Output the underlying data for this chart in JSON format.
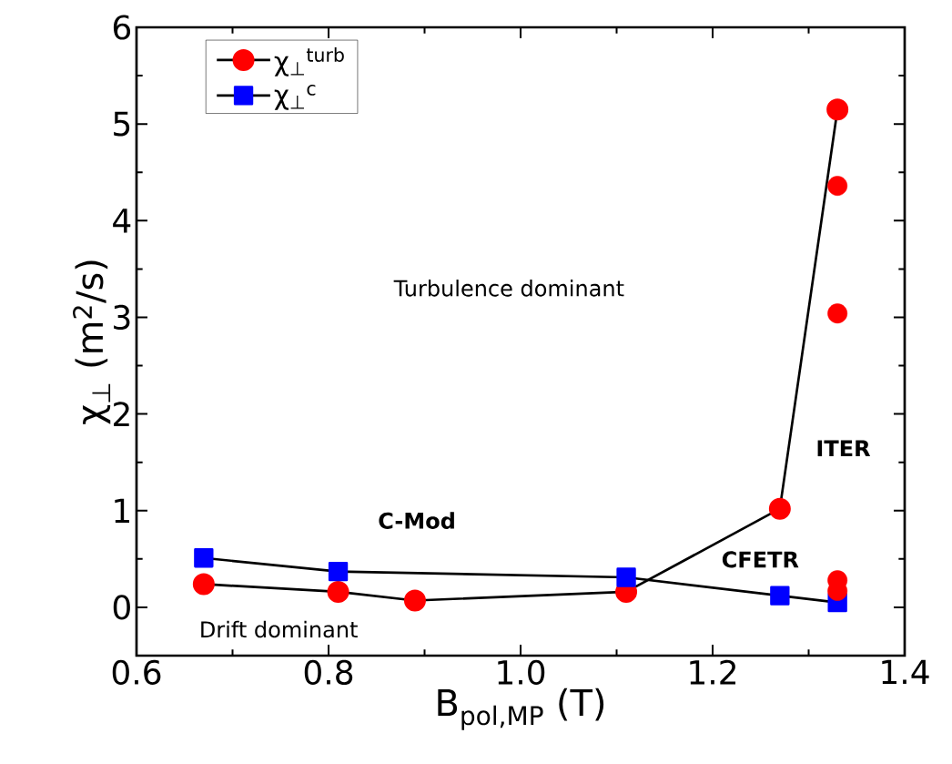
{
  "chart_data": {
    "type": "line",
    "xlabel": "B$_{pol,MP}$ (T)",
    "ylabel": "χ$_{⊥}$ (m$^{2}$/s)",
    "xlim": [
      0.6,
      1.4
    ],
    "xticks": [
      {
        "value": 0.6,
        "label": "0.6"
      },
      {
        "value": 0.8,
        "label": "0.8"
      },
      {
        "value": 1.0,
        "label": "1.0"
      },
      {
        "value": 1.2,
        "label": "1.2"
      },
      {
        "value": 1.4,
        "label": "1.4"
      }
    ],
    "ylim": [
      -0.5,
      6
    ],
    "yticks": [
      0,
      1,
      2,
      3,
      4,
      5,
      6
    ],
    "grid": false,
    "legend": "top left",
    "series": [
      {
        "name": "χ$_{⊥}$$^{turb}$",
        "color": "#ff0000",
        "marker": "circle",
        "x": [
          0.67,
          0.81,
          0.89,
          1.11,
          1.27,
          1.33
        ],
        "values": [
          0.24,
          0.16,
          0.07,
          0.16,
          1.02,
          5.15
        ]
      },
      {
        "name": "χ$_{⊥}$$^{c}$",
        "color": "#0000ff",
        "marker": "square",
        "x": [
          0.67,
          0.81,
          1.11,
          1.27,
          1.33
        ],
        "values": [
          0.51,
          0.37,
          0.31,
          0.12,
          0.05
        ]
      },
      {
        "type": "scatter",
        "color": "#ff0000",
        "marker": "circle",
        "x": [
          1.33,
          1.33,
          1.33,
          1.33
        ],
        "values": [
          4.36,
          3.04,
          0.28,
          0.17
        ]
      }
    ],
    "annotations": [
      "Turbulence dominant",
      "Drift dominant",
      "C-Mod",
      "CFETR",
      "ITER"
    ]
  }
}
